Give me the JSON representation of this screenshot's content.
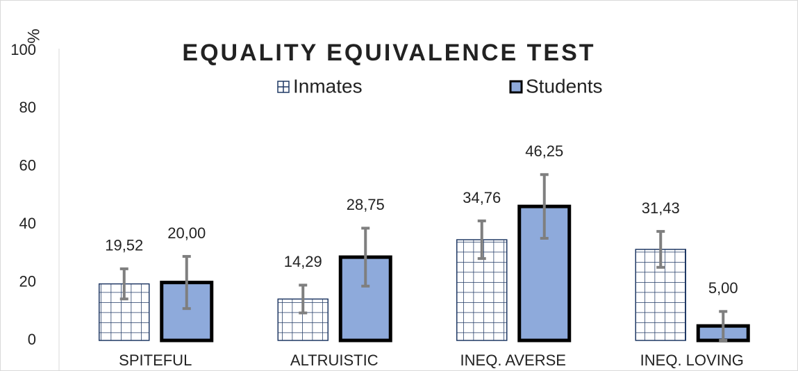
{
  "chart_data": {
    "type": "bar",
    "title": "EQUALITY EQUIVALENCE TEST",
    "ylabel": "%",
    "categories": [
      "SPITEFUL",
      "ALTRUISTIC",
      "INEQ. AVERSE",
      "INEQ. LOVING"
    ],
    "series": [
      {
        "name": "Inmates",
        "color": "#1f3864",
        "pattern": "grid",
        "values": [
          19.52,
          14.29,
          34.76,
          31.43
        ],
        "value_labels": [
          "19,52",
          "14,29",
          "34,76",
          "31,43"
        ],
        "errors": [
          5.2,
          4.8,
          6.5,
          6.2
        ]
      },
      {
        "name": "Students",
        "color": "#8eaadb",
        "pattern": "solid",
        "values": [
          20.0,
          28.75,
          46.25,
          5.0
        ],
        "value_labels": [
          "20,00",
          "28,75",
          "46,25",
          "5,00"
        ],
        "errors": [
          9,
          10,
          11,
          5
        ]
      }
    ],
    "error_color": "#7f7f7f",
    "ylim": [
      0,
      100
    ],
    "yticks": [
      0,
      20,
      40,
      60,
      80,
      100
    ],
    "grid": false,
    "legend": "top"
  }
}
